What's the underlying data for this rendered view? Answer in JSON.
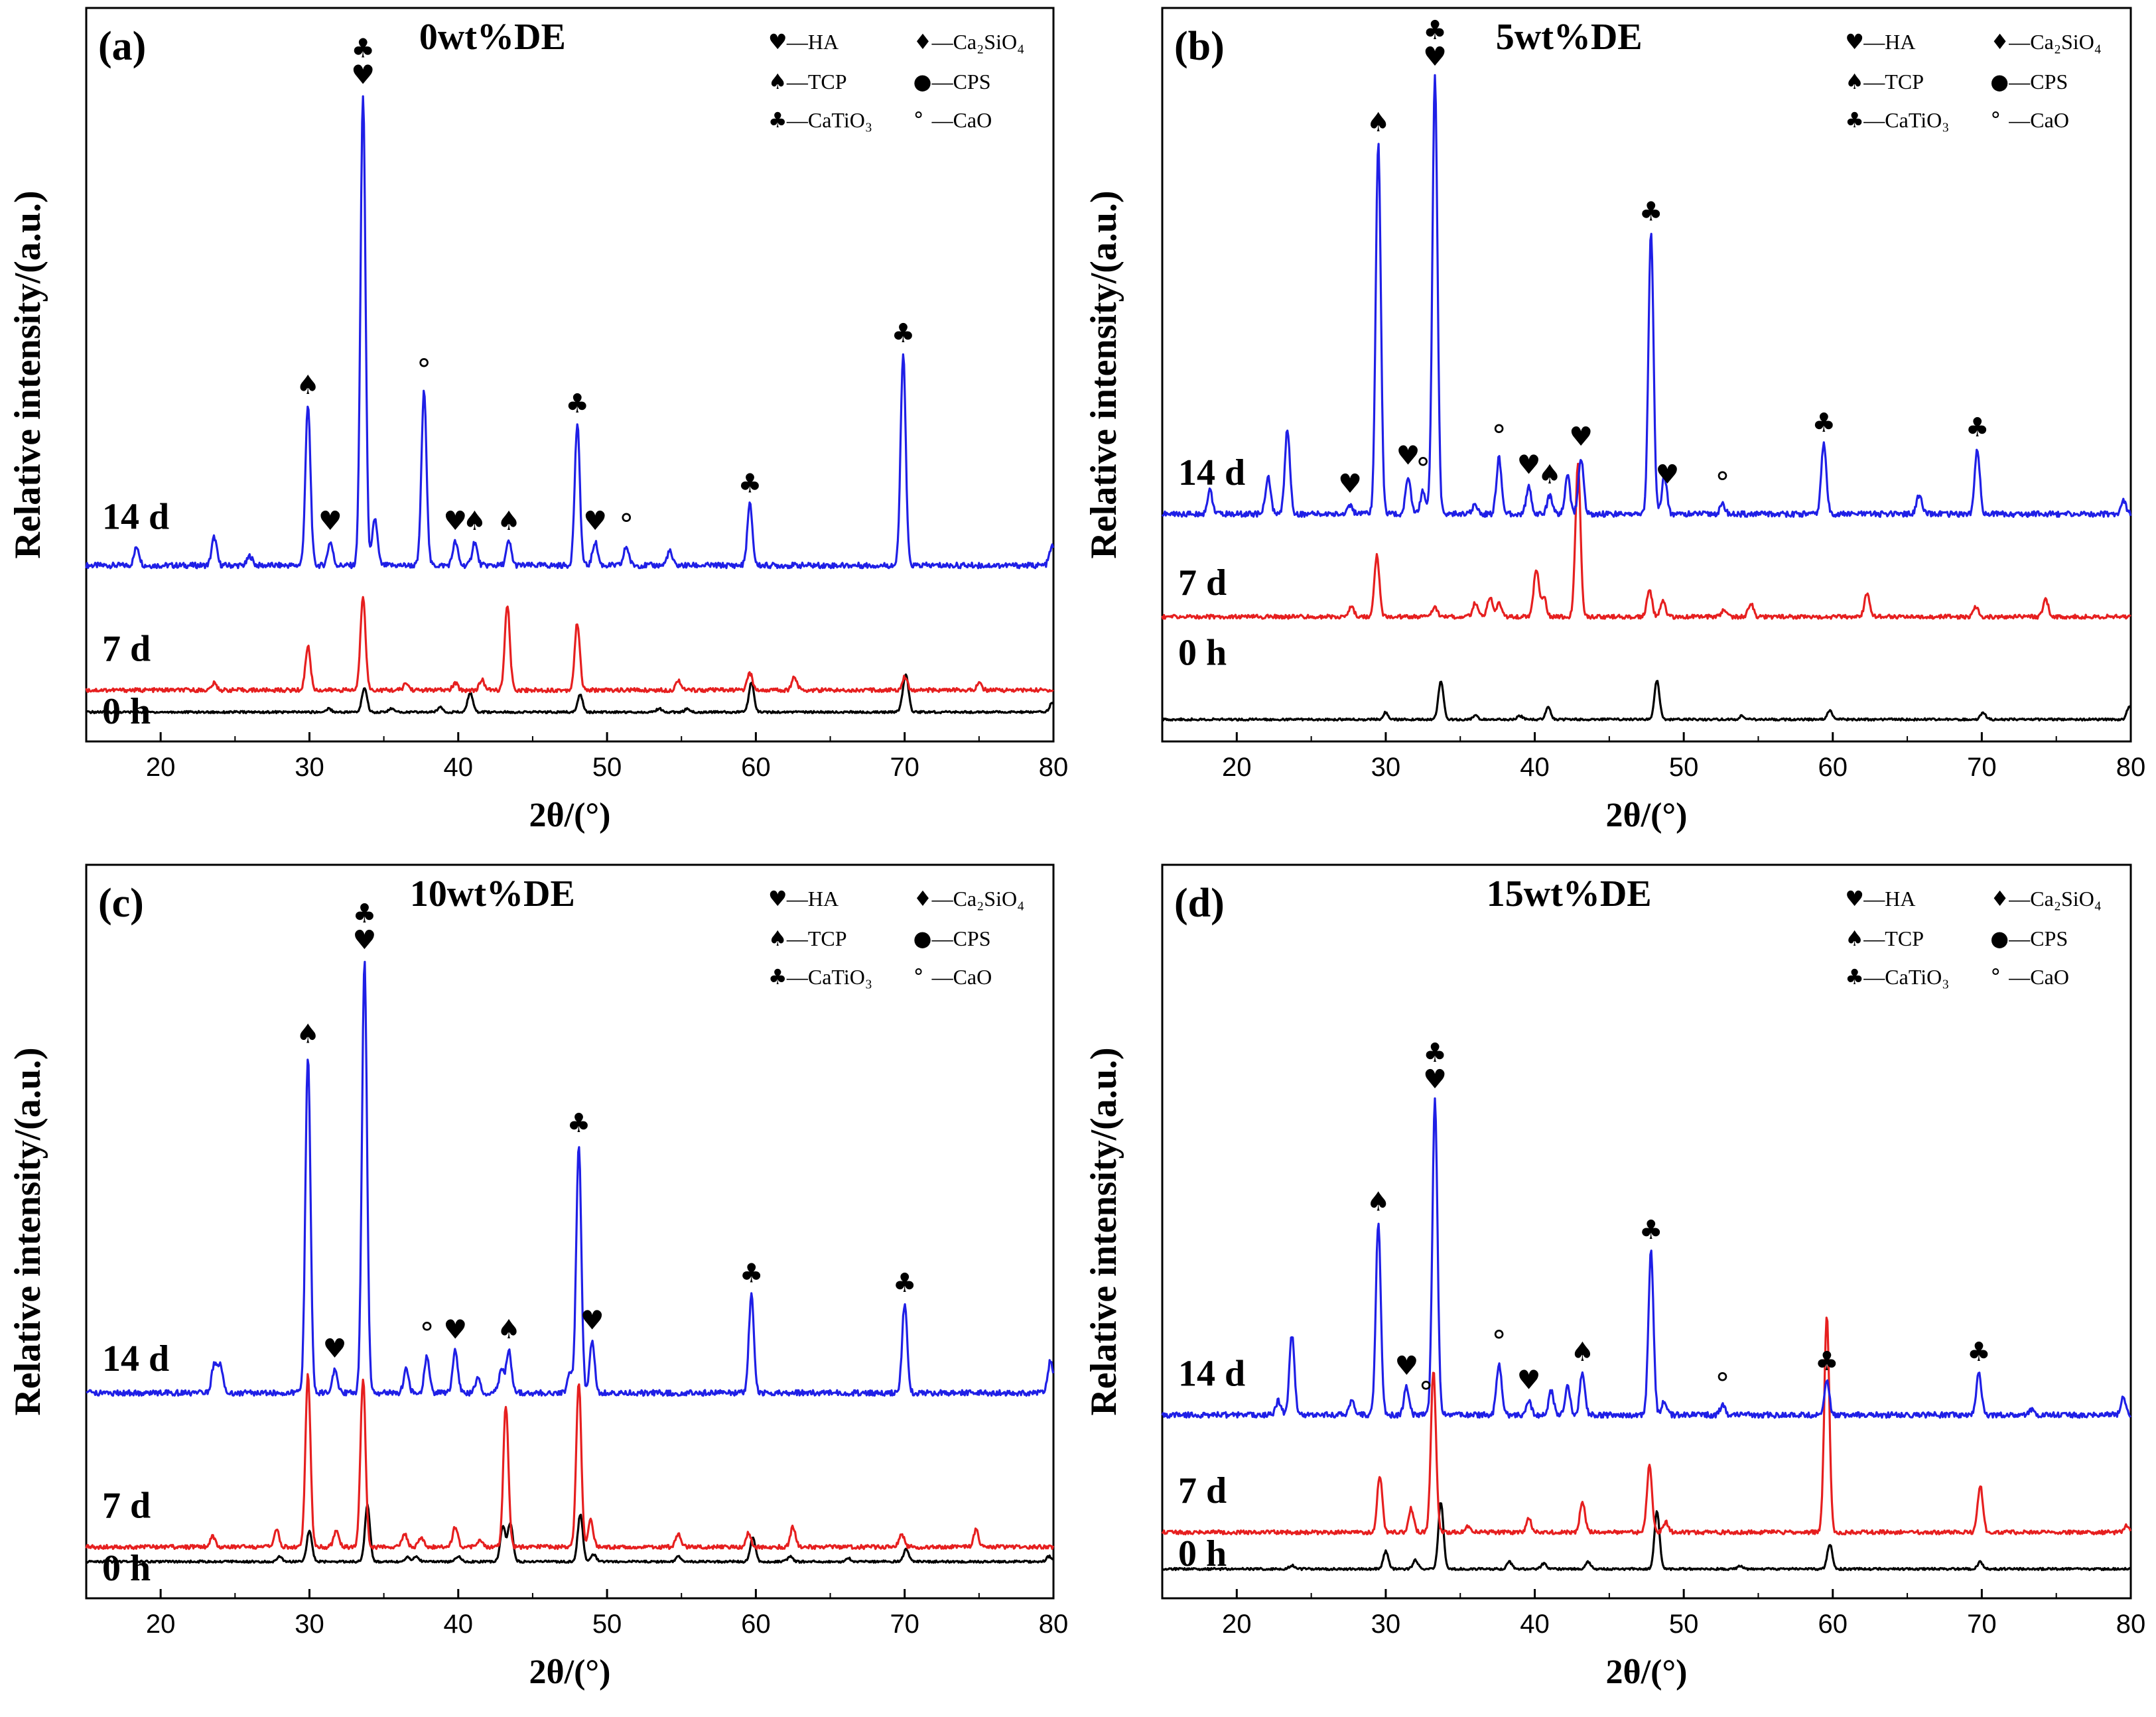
{
  "figure": {
    "legend": {
      "entries": [
        {
          "symbol": "♥",
          "text": "—HA"
        },
        {
          "symbol": "♦",
          "text": "—Ca₂SiO₄"
        },
        {
          "symbol": "♠",
          "text": "—TCP"
        },
        {
          "symbol": "●",
          "text": "—CPS"
        },
        {
          "symbol": "♣",
          "text": "—CaTiO₃"
        },
        {
          "symbol": "°",
          "text": "—CaO"
        }
      ]
    },
    "series_labels": [
      "14 d",
      "7 d",
      "0 h"
    ],
    "series_colors": {
      "14 d": "#1f1fe6",
      "7 d": "#e61f1f",
      "0 h": "#000000"
    }
  },
  "chart_data": [
    {
      "type": "line",
      "panel": "(a)",
      "title": "0wt%DE",
      "xlabel": "2θ/(°)",
      "ylabel": "Relative intensity/(a.u.)",
      "xlim": [
        15,
        80
      ],
      "xticks": [
        20,
        30,
        40,
        50,
        60,
        70,
        80
      ],
      "series": [
        {
          "name": "14 d",
          "peaks": [
            [
              18.4,
              0.04
            ],
            [
              23.6,
              0.06
            ],
            [
              26.0,
              0.02
            ],
            [
              29.9,
              0.34
            ],
            [
              31.4,
              0.05
            ],
            [
              33.6,
              1.0
            ],
            [
              34.4,
              0.1
            ],
            [
              37.7,
              0.37
            ],
            [
              39.8,
              0.05
            ],
            [
              41.1,
              0.05
            ],
            [
              43.4,
              0.05
            ],
            [
              48.0,
              0.3
            ],
            [
              49.2,
              0.05
            ],
            [
              51.3,
              0.04
            ],
            [
              54.2,
              0.03
            ],
            [
              59.6,
              0.13
            ],
            [
              69.9,
              0.45
            ],
            [
              79.9,
              0.04
            ]
          ]
        },
        {
          "name": "7 d",
          "peaks": [
            [
              23.6,
              0.02
            ],
            [
              29.9,
              0.13
            ],
            [
              33.6,
              0.28
            ],
            [
              36.5,
              0.02
            ],
            [
              39.8,
              0.02
            ],
            [
              41.6,
              0.03
            ],
            [
              43.3,
              0.25
            ],
            [
              48.0,
              0.2
            ],
            [
              54.8,
              0.03
            ],
            [
              59.6,
              0.05
            ],
            [
              62.6,
              0.04
            ],
            [
              70.0,
              0.04
            ],
            [
              75.0,
              0.02
            ]
          ]
        },
        {
          "name": "0 h",
          "peaks": [
            [
              31.3,
              0.02
            ],
            [
              33.7,
              0.14
            ],
            [
              35.5,
              0.02
            ],
            [
              38.8,
              0.03
            ],
            [
              40.8,
              0.11
            ],
            [
              48.2,
              0.1
            ],
            [
              53.5,
              0.02
            ],
            [
              55.4,
              0.02
            ],
            [
              59.7,
              0.17
            ],
            [
              69.9,
              0.05
            ],
            [
              70.1,
              0.19
            ],
            [
              79.9,
              0.05
            ]
          ]
        }
      ],
      "annotations": [
        {
          "x": 29.9,
          "series": "14 d",
          "symbols": "♠"
        },
        {
          "x": 31.4,
          "series": "14 d",
          "symbols": "♥"
        },
        {
          "x": 33.6,
          "series": "14 d",
          "symbols": "♣♥"
        },
        {
          "x": 37.7,
          "series": "14 d",
          "symbols": "°"
        },
        {
          "x": 39.8,
          "series": "14 d",
          "symbols": "♥"
        },
        {
          "x": 41.1,
          "series": "14 d",
          "symbols": "♠"
        },
        {
          "x": 43.4,
          "series": "14 d",
          "symbols": "♠"
        },
        {
          "x": 48.0,
          "series": "14 d",
          "symbols": "♣"
        },
        {
          "x": 49.2,
          "series": "14 d",
          "symbols": "♥"
        },
        {
          "x": 51.3,
          "series": "14 d",
          "symbols": "°"
        },
        {
          "x": 59.6,
          "series": "14 d",
          "symbols": "♣"
        },
        {
          "x": 69.9,
          "series": "14 d",
          "symbols": "♣"
        }
      ]
    },
    {
      "type": "line",
      "panel": "(b)",
      "title": "5wt%DE",
      "xlabel": "2θ/(°)",
      "ylabel": "Relative intensity/(a.u.)",
      "xlim": [
        15,
        80
      ],
      "xticks": [
        20,
        30,
        40,
        50,
        60,
        70,
        80
      ],
      "series": [
        {
          "name": "14 d",
          "peaks": [
            [
              18.2,
              0.05
            ],
            [
              22.1,
              0.08
            ],
            [
              23.4,
              0.18
            ],
            [
              27.6,
              0.02
            ],
            [
              29.5,
              0.79
            ],
            [
              31.5,
              0.08
            ],
            [
              32.5,
              0.05
            ],
            [
              33.3,
              0.93
            ],
            [
              36.0,
              0.02
            ],
            [
              37.6,
              0.12
            ],
            [
              39.6,
              0.06
            ],
            [
              41.0,
              0.04
            ],
            [
              42.2,
              0.08
            ],
            [
              43.1,
              0.12
            ],
            [
              47.8,
              0.6
            ],
            [
              48.7,
              0.08
            ],
            [
              52.6,
              0.02
            ],
            [
              59.4,
              0.15
            ],
            [
              65.8,
              0.04
            ],
            [
              69.7,
              0.14
            ],
            [
              79.5,
              0.03
            ]
          ]
        },
        {
          "name": "7 d",
          "peaks": [
            [
              27.7,
              0.03
            ],
            [
              29.4,
              0.18
            ],
            [
              33.3,
              0.03
            ],
            [
              36.0,
              0.04
            ],
            [
              37.0,
              0.06
            ],
            [
              37.6,
              0.04
            ],
            [
              40.1,
              0.14
            ],
            [
              40.6,
              0.06
            ],
            [
              42.9,
              0.45
            ],
            [
              47.7,
              0.08
            ],
            [
              48.6,
              0.05
            ],
            [
              52.7,
              0.02
            ],
            [
              54.5,
              0.04
            ],
            [
              62.3,
              0.07
            ],
            [
              69.6,
              0.03
            ],
            [
              74.3,
              0.05
            ]
          ]
        },
        {
          "name": "0 h",
          "peaks": [
            [
              30.0,
              0.04
            ],
            [
              33.7,
              0.22
            ],
            [
              36.0,
              0.02
            ],
            [
              39.0,
              0.02
            ],
            [
              40.9,
              0.07
            ],
            [
              48.2,
              0.22
            ],
            [
              53.9,
              0.02
            ],
            [
              59.8,
              0.05
            ],
            [
              70.1,
              0.04
            ],
            [
              79.9,
              0.07
            ]
          ]
        }
      ],
      "annotations": [
        {
          "x": 27.6,
          "series": "14 d",
          "symbols": "♥"
        },
        {
          "x": 29.5,
          "series": "14 d",
          "symbols": "♠"
        },
        {
          "x": 31.5,
          "series": "14 d",
          "symbols": "♥"
        },
        {
          "x": 32.5,
          "series": "14 d",
          "symbols": "°"
        },
        {
          "x": 33.3,
          "series": "14 d",
          "symbols": "♣♥"
        },
        {
          "x": 37.6,
          "series": "14 d",
          "symbols": "°"
        },
        {
          "x": 39.6,
          "series": "14 d",
          "symbols": "♥"
        },
        {
          "x": 41.0,
          "series": "14 d",
          "symbols": "♠"
        },
        {
          "x": 43.1,
          "series": "14 d",
          "symbols": "♥"
        },
        {
          "x": 47.8,
          "series": "14 d",
          "symbols": "♣"
        },
        {
          "x": 48.9,
          "series": "14 d",
          "symbols": "♥"
        },
        {
          "x": 52.6,
          "series": "14 d",
          "symbols": "°"
        },
        {
          "x": 59.4,
          "series": "14 d",
          "symbols": "♣"
        },
        {
          "x": 69.7,
          "series": "14 d",
          "symbols": "♣"
        }
      ]
    },
    {
      "type": "line",
      "panel": "(c)",
      "title": "10wt%DE",
      "xlabel": "2θ/(°)",
      "ylabel": "Relative intensity/(a.u.)",
      "xlim": [
        15,
        80
      ],
      "xticks": [
        20,
        30,
        40,
        50,
        60,
        70,
        80
      ],
      "series": [
        {
          "name": "14 d",
          "peaks": [
            [
              23.6,
              0.06
            ],
            [
              24.0,
              0.06
            ],
            [
              29.9,
              0.72
            ],
            [
              31.7,
              0.05
            ],
            [
              33.7,
              0.92
            ],
            [
              36.5,
              0.05
            ],
            [
              37.9,
              0.08
            ],
            [
              39.8,
              0.09
            ],
            [
              41.3,
              0.03
            ],
            [
              42.9,
              0.05
            ],
            [
              43.4,
              0.09
            ],
            [
              47.5,
              0.04
            ],
            [
              48.1,
              0.53
            ],
            [
              49.0,
              0.11
            ],
            [
              59.7,
              0.21
            ],
            [
              70.0,
              0.19
            ],
            [
              79.8,
              0.07
            ]
          ]
        },
        {
          "name": "7 d",
          "peaks": [
            [
              23.5,
              0.03
            ],
            [
              27.8,
              0.05
            ],
            [
              29.9,
              0.51
            ],
            [
              31.8,
              0.05
            ],
            [
              33.6,
              0.5
            ],
            [
              36.4,
              0.04
            ],
            [
              37.5,
              0.03
            ],
            [
              39.8,
              0.06
            ],
            [
              41.5,
              0.02
            ],
            [
              43.2,
              0.42
            ],
            [
              48.1,
              0.49
            ],
            [
              48.9,
              0.08
            ],
            [
              54.8,
              0.04
            ],
            [
              59.5,
              0.04
            ],
            [
              62.5,
              0.06
            ],
            [
              69.8,
              0.04
            ],
            [
              74.8,
              0.05
            ]
          ]
        },
        {
          "name": "0 h",
          "peaks": [
            [
              28.0,
              0.03
            ],
            [
              30.0,
              0.18
            ],
            [
              33.9,
              0.32
            ],
            [
              36.6,
              0.03
            ],
            [
              37.2,
              0.03
            ],
            [
              40.0,
              0.03
            ],
            [
              43.0,
              0.2
            ],
            [
              43.5,
              0.22
            ],
            [
              48.2,
              0.27
            ],
            [
              49.1,
              0.04
            ],
            [
              54.8,
              0.03
            ],
            [
              59.8,
              0.14
            ],
            [
              62.3,
              0.03
            ],
            [
              66.2,
              0.02
            ],
            [
              70.1,
              0.07
            ],
            [
              79.7,
              0.03
            ]
          ]
        }
      ],
      "annotations": [
        {
          "x": 29.9,
          "series": "14 d",
          "symbols": "♠"
        },
        {
          "x": 31.7,
          "series": "14 d",
          "symbols": "♥"
        },
        {
          "x": 33.7,
          "series": "14 d",
          "symbols": "♣♥"
        },
        {
          "x": 37.9,
          "series": "14 d",
          "symbols": "°"
        },
        {
          "x": 39.8,
          "series": "14 d",
          "symbols": "♥"
        },
        {
          "x": 43.4,
          "series": "14 d",
          "symbols": "♠"
        },
        {
          "x": 48.1,
          "series": "14 d",
          "symbols": "♣"
        },
        {
          "x": 49.0,
          "series": "14 d",
          "symbols": "♥"
        },
        {
          "x": 59.7,
          "series": "14 d",
          "symbols": "♣"
        },
        {
          "x": 70.0,
          "series": "14 d",
          "symbols": "♣"
        }
      ]
    },
    {
      "type": "line",
      "panel": "(d)",
      "title": "15wt%DE",
      "xlabel": "2θ/(°)",
      "ylabel": "Relative intensity/(a.u.)",
      "xlim": [
        15,
        80
      ],
      "xticks": [
        20,
        30,
        40,
        50,
        60,
        70,
        80
      ],
      "series": [
        {
          "name": "14 d",
          "peaks": [
            [
              22.8,
              0.03
            ],
            [
              23.7,
              0.17
            ],
            [
              27.7,
              0.03
            ],
            [
              29.5,
              0.41
            ],
            [
              31.4,
              0.06
            ],
            [
              33.3,
              0.67
            ],
            [
              37.6,
              0.11
            ],
            [
              39.6,
              0.03
            ],
            [
              41.1,
              0.05
            ],
            [
              42.2,
              0.06
            ],
            [
              43.2,
              0.09
            ],
            [
              47.8,
              0.35
            ],
            [
              48.7,
              0.03
            ],
            [
              52.6,
              0.02
            ],
            [
              59.6,
              0.07
            ],
            [
              69.8,
              0.09
            ],
            [
              73.3,
              0.01
            ],
            [
              79.5,
              0.04
            ]
          ]
        },
        {
          "name": "7 d",
          "peaks": [
            [
              29.6,
              0.17
            ],
            [
              31.7,
              0.07
            ],
            [
              33.2,
              0.48
            ],
            [
              35.5,
              0.02
            ],
            [
              39.6,
              0.04
            ],
            [
              43.2,
              0.09
            ],
            [
              47.7,
              0.2
            ],
            [
              48.8,
              0.03
            ],
            [
              59.6,
              0.64
            ],
            [
              69.9,
              0.14
            ],
            [
              79.7,
              0.02
            ]
          ]
        },
        {
          "name": "0 h",
          "peaks": [
            [
              23.7,
              0.02
            ],
            [
              30.0,
              0.1
            ],
            [
              32.0,
              0.05
            ],
            [
              33.7,
              0.38
            ],
            [
              38.3,
              0.04
            ],
            [
              40.6,
              0.03
            ],
            [
              43.6,
              0.04
            ],
            [
              48.2,
              0.33
            ],
            [
              53.8,
              0.02
            ],
            [
              59.8,
              0.14
            ],
            [
              69.9,
              0.04
            ]
          ]
        }
      ],
      "annotations": [
        {
          "x": 29.5,
          "series": "14 d",
          "symbols": "♠"
        },
        {
          "x": 31.4,
          "series": "14 d",
          "symbols": "♥"
        },
        {
          "x": 32.7,
          "series": "14 d",
          "symbols": "°"
        },
        {
          "x": 33.3,
          "series": "14 d",
          "symbols": "♣♥"
        },
        {
          "x": 37.6,
          "series": "14 d",
          "symbols": "°"
        },
        {
          "x": 39.6,
          "series": "14 d",
          "symbols": "♥"
        },
        {
          "x": 43.2,
          "series": "14 d",
          "symbols": "♠"
        },
        {
          "x": 47.8,
          "series": "14 d",
          "symbols": "♣"
        },
        {
          "x": 52.6,
          "series": "14 d",
          "symbols": "°"
        },
        {
          "x": 59.6,
          "series": "14 d",
          "symbols": "♣"
        },
        {
          "x": 69.8,
          "series": "14 d",
          "symbols": "♣"
        }
      ]
    }
  ]
}
